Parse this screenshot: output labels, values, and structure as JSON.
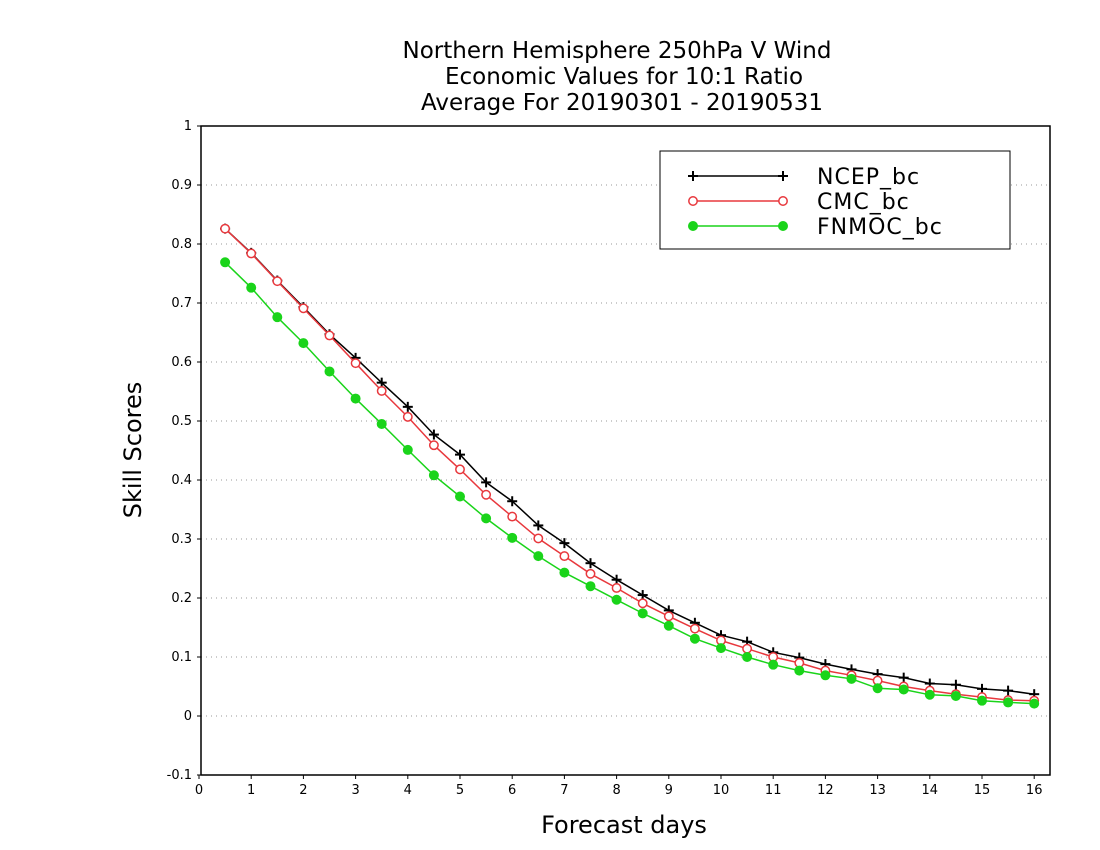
{
  "chart_data": {
    "type": "line",
    "title": [
      "Northern Hemisphere 250hPa V Wind",
      "Economic Values for 10:1 Ratio",
      "Average For 20190301 - 20190531"
    ],
    "xlabel": "Forecast days",
    "ylabel": "Skill Scores",
    "xlim": [
      0,
      16.2
    ],
    "ylim": [
      -0.1,
      1
    ],
    "xticks": [
      0,
      1,
      2,
      3,
      4,
      5,
      6,
      7,
      8,
      9,
      10,
      11,
      12,
      13,
      14,
      15,
      16
    ],
    "yticks": [
      -0.1,
      0,
      0.1,
      0.2,
      0.3,
      0.4,
      0.5,
      0.6,
      0.7,
      0.8,
      0.9,
      1
    ],
    "ytick_labels": [
      "-0.1",
      "0",
      "0.1",
      "0.2",
      "0.3",
      "0.4",
      "0.5",
      "0.6",
      "0.7",
      "0.8",
      "0.9",
      "1"
    ],
    "grid": "dotted-horizontal",
    "legend_position": "top-right",
    "x": [
      0.5,
      1,
      1.5,
      2,
      2.5,
      3,
      3.5,
      4,
      4.5,
      5,
      5.5,
      6,
      6.5,
      7,
      7.5,
      8,
      8.5,
      9,
      9.5,
      10,
      10.5,
      11,
      11.5,
      12,
      12.5,
      13,
      13.5,
      14,
      14.5,
      15,
      15.5,
      16
    ],
    "series": [
      {
        "name": "NCEP_bc",
        "color": "#000000",
        "marker": "plus",
        "values": [
          0.826,
          0.785,
          0.738,
          0.693,
          0.647,
          0.607,
          0.565,
          0.524,
          0.477,
          0.443,
          0.396,
          0.364,
          0.323,
          0.293,
          0.259,
          0.231,
          0.205,
          0.179,
          0.158,
          0.137,
          0.126,
          0.108,
          0.099,
          0.088,
          0.079,
          0.071,
          0.065,
          0.055,
          0.053,
          0.046,
          0.043,
          0.037
        ]
      },
      {
        "name": "CMC_bc",
        "color": "#e8383d",
        "marker": "open-circle",
        "values": [
          0.826,
          0.784,
          0.737,
          0.691,
          0.645,
          0.598,
          0.551,
          0.507,
          0.459,
          0.418,
          0.375,
          0.338,
          0.301,
          0.271,
          0.241,
          0.217,
          0.191,
          0.169,
          0.148,
          0.128,
          0.114,
          0.1,
          0.09,
          0.077,
          0.069,
          0.06,
          0.05,
          0.043,
          0.037,
          0.032,
          0.027,
          0.026
        ]
      },
      {
        "name": "FNMOC_bc",
        "color": "#1ad41a",
        "marker": "filled-circle",
        "values": [
          0.769,
          0.726,
          0.676,
          0.632,
          0.584,
          0.538,
          0.495,
          0.451,
          0.408,
          0.372,
          0.335,
          0.302,
          0.271,
          0.243,
          0.22,
          0.197,
          0.174,
          0.153,
          0.131,
          0.115,
          0.1,
          0.087,
          0.077,
          0.069,
          0.063,
          0.047,
          0.045,
          0.036,
          0.034,
          0.026,
          0.023,
          0.021
        ]
      }
    ]
  }
}
